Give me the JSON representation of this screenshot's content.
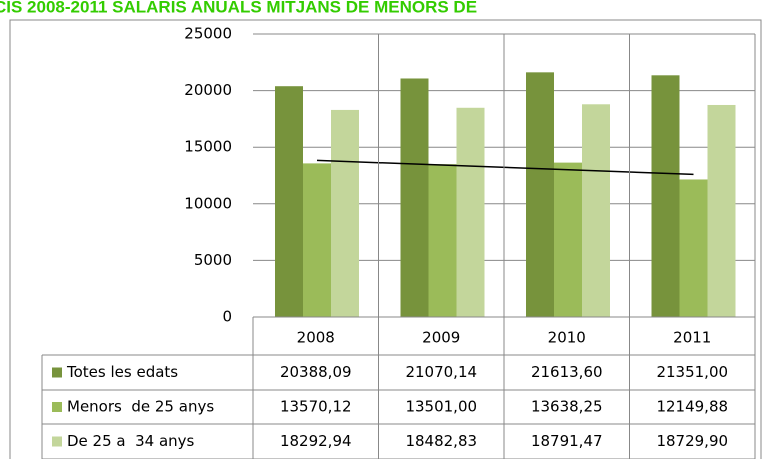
{
  "chart_data": {
    "type": "bar",
    "title": "CIS 2008-2011 SALARIS ANUALS MITJANS DE MENORS DE",
    "categories": [
      "2008",
      "2009",
      "2010",
      "2011"
    ],
    "series": [
      {
        "name": "Totes les edats",
        "color": "#77933c",
        "values": [
          20388.09,
          21070.14,
          21613.6,
          21351.0
        ],
        "value_labels": [
          "20388,09",
          "21070,14",
          "21613,60",
          "21351,00"
        ]
      },
      {
        "name": "Menors  de 25 anys",
        "color": "#9bbb59",
        "values": [
          13570.12,
          13501.0,
          13638.25,
          12149.88
        ],
        "value_labels": [
          "13570,12",
          "13501,00",
          "13638,25",
          "12149,88"
        ],
        "trendline": true
      },
      {
        "name": "De 25 a  34 anys",
        "color": "#c3d69b",
        "values": [
          18292.94,
          18482.83,
          18791.47,
          18729.9
        ],
        "value_labels": [
          "18292,94",
          "18482,83",
          "18791,47",
          "18729,90"
        ]
      }
    ],
    "ylim": [
      0,
      25000
    ],
    "yticks": [
      0,
      5000,
      10000,
      15000,
      20000,
      25000
    ],
    "grid": true
  }
}
